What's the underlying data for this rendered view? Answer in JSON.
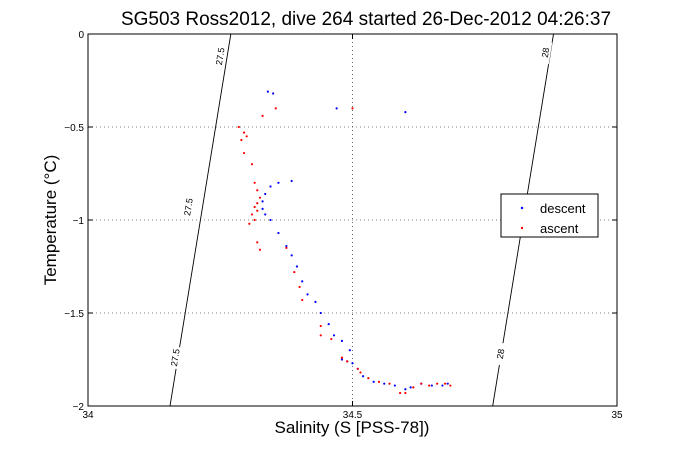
{
  "chart_data": {
    "type": "scatter",
    "title": "SG503 Ross2012, dive 264 started 26-Dec-2012 04:26:37",
    "xlabel": "Salinity (S [PSS-78])",
    "ylabel": "Temperature (°C)",
    "xlim": [
      34,
      35
    ],
    "ylim": [
      -2,
      0
    ],
    "x_ticks": [
      34,
      34.5,
      35
    ],
    "x_tick_labels": [
      "34",
      "34.5",
      "35"
    ],
    "y_ticks": [
      0,
      -0.5,
      -1,
      -1.5,
      -2
    ],
    "y_tick_labels": [
      "0",
      "-0.5",
      "-1",
      "-1.5",
      "-2"
    ],
    "grid": true,
    "legend": {
      "placement": "right",
      "entries": [
        "descent",
        "ascent"
      ]
    },
    "colors": {
      "descent": "#0000ff",
      "ascent": "#ff0000",
      "contour": "#000000"
    },
    "contours": [
      {
        "label": "27.5",
        "points": [
          [
            34.155,
            -2
          ],
          [
            34.27,
            0
          ]
        ],
        "label_positions": [
          [
            34.25,
            -0.12
          ],
          [
            34.19,
            -0.93
          ],
          [
            34.165,
            -1.74
          ]
        ]
      },
      {
        "label": "28",
        "points": [
          [
            34.765,
            -2
          ],
          [
            34.88,
            0
          ]
        ],
        "label_positions": [
          [
            34.865,
            -0.1
          ],
          [
            34.78,
            -1.72
          ]
        ]
      }
    ],
    "series": [
      {
        "name": "descent",
        "points": [
          [
            34.34,
            -0.31
          ],
          [
            34.35,
            -0.32
          ],
          [
            34.47,
            -0.4
          ],
          [
            34.6,
            -0.42
          ],
          [
            34.345,
            -0.82
          ],
          [
            34.36,
            -0.8
          ],
          [
            34.385,
            -0.79
          ],
          [
            34.335,
            -0.86
          ],
          [
            34.33,
            -0.9
          ],
          [
            34.33,
            -0.94
          ],
          [
            34.335,
            -0.97
          ],
          [
            34.345,
            -1.0
          ],
          [
            34.36,
            -1.07
          ],
          [
            34.375,
            -1.14
          ],
          [
            34.385,
            -1.19
          ],
          [
            34.395,
            -1.25
          ],
          [
            34.405,
            -1.33
          ],
          [
            34.415,
            -1.4
          ],
          [
            34.43,
            -1.44
          ],
          [
            34.44,
            -1.5
          ],
          [
            34.455,
            -1.56
          ],
          [
            34.465,
            -1.62
          ],
          [
            34.48,
            -1.65
          ],
          [
            34.495,
            -1.7
          ],
          [
            34.48,
            -1.75
          ],
          [
            34.49,
            -1.76
          ],
          [
            34.5,
            -1.77
          ],
          [
            34.51,
            -1.8
          ],
          [
            34.52,
            -1.84
          ],
          [
            34.54,
            -1.87
          ],
          [
            34.56,
            -1.88
          ],
          [
            34.58,
            -1.89
          ],
          [
            34.6,
            -1.91
          ],
          [
            34.61,
            -1.9
          ],
          [
            34.63,
            -1.88
          ],
          [
            34.65,
            -1.89
          ],
          [
            34.67,
            -1.89
          ],
          [
            34.68,
            -1.88
          ]
        ]
      },
      {
        "name": "ascent",
        "points": [
          [
            34.33,
            -0.44
          ],
          [
            34.355,
            -0.4
          ],
          [
            34.5,
            -0.4
          ],
          [
            34.285,
            -0.5
          ],
          [
            34.295,
            -0.53
          ],
          [
            34.3,
            -0.55
          ],
          [
            34.29,
            -0.57
          ],
          [
            34.295,
            -0.64
          ],
          [
            34.31,
            -0.7
          ],
          [
            34.315,
            -0.8
          ],
          [
            34.32,
            -0.84
          ],
          [
            34.325,
            -0.88
          ],
          [
            34.32,
            -0.91
          ],
          [
            34.315,
            -0.93
          ],
          [
            34.32,
            -0.95
          ],
          [
            34.31,
            -0.97
          ],
          [
            34.315,
            -1.0
          ],
          [
            34.305,
            -1.02
          ],
          [
            34.32,
            -1.12
          ],
          [
            34.325,
            -1.16
          ],
          [
            34.375,
            -1.15
          ],
          [
            34.39,
            -1.28
          ],
          [
            34.4,
            -1.36
          ],
          [
            34.405,
            -1.43
          ],
          [
            34.44,
            -1.57
          ],
          [
            34.44,
            -1.62
          ],
          [
            34.46,
            -1.64
          ],
          [
            34.48,
            -1.74
          ],
          [
            34.49,
            -1.76
          ],
          [
            34.51,
            -1.8
          ],
          [
            34.515,
            -1.82
          ],
          [
            34.53,
            -1.85
          ],
          [
            34.55,
            -1.87
          ],
          [
            34.57,
            -1.88
          ],
          [
            34.59,
            -1.93
          ],
          [
            34.6,
            -1.93
          ],
          [
            34.615,
            -1.9
          ],
          [
            34.63,
            -1.88
          ],
          [
            34.645,
            -1.89
          ],
          [
            34.66,
            -1.88
          ],
          [
            34.675,
            -1.88
          ],
          [
            34.685,
            -1.89
          ]
        ]
      }
    ]
  }
}
